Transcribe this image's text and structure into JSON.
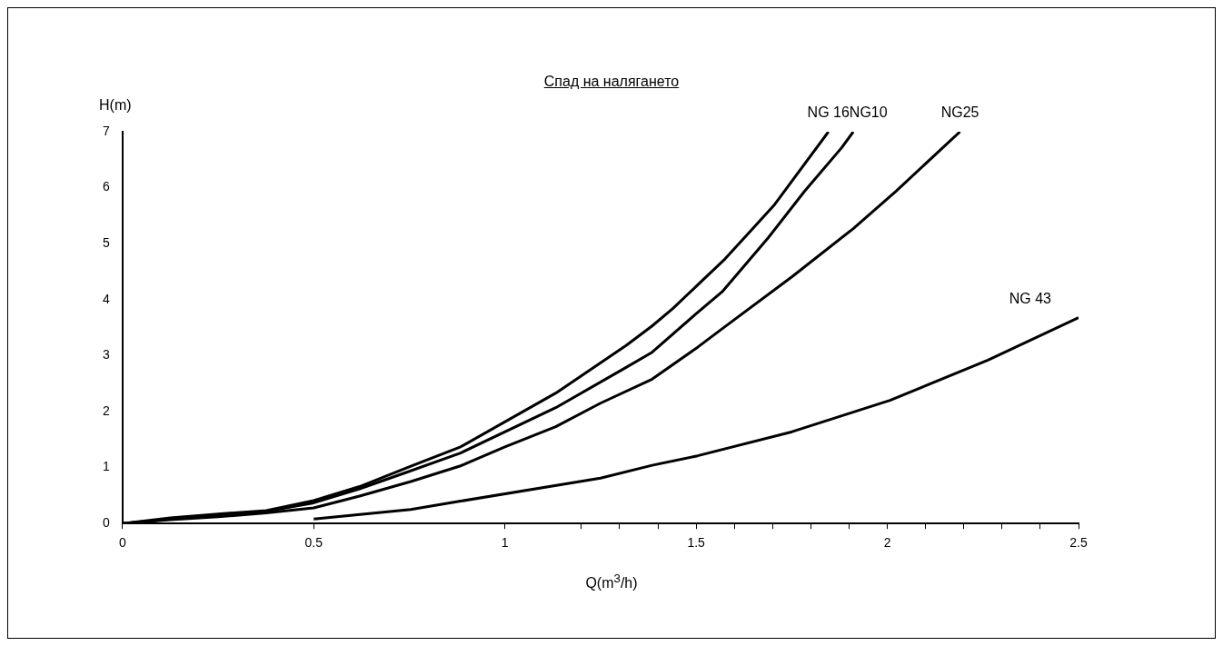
{
  "chart_data": {
    "type": "line",
    "title": "Спад на налягането",
    "xlabel": "Q(m$^{3}$/h)",
    "ylabel": "H(m)",
    "series": [
      {
        "name": "NG 16",
        "color": "#000000",
        "x": [
          0,
          0.125,
          0.25,
          0.376,
          0.5,
          0.62,
          0.745,
          0.884,
          1.133,
          1.317,
          1.385,
          1.439,
          1.576,
          1.703,
          1.846
        ],
        "values": [
          0,
          0.1,
          0.17,
          0.23,
          0.41,
          0.66,
          1.0,
          1.37,
          2.33,
          3.18,
          3.53,
          3.84,
          4.73,
          5.68,
          7.0
        ]
      },
      {
        "name": "NG10",
        "color": "#000000",
        "x": [
          0,
          0.125,
          0.25,
          0.376,
          0.5,
          0.62,
          0.745,
          0.884,
          1.133,
          1.317,
          1.385,
          1.497,
          1.568,
          1.688,
          1.784,
          1.88,
          1.911
        ],
        "values": [
          0,
          0.08,
          0.15,
          0.22,
          0.37,
          0.62,
          0.92,
          1.26,
          2.07,
          2.79,
          3.06,
          3.73,
          4.14,
          5.1,
          5.94,
          6.71,
          7.0
        ]
      },
      {
        "name": "NG25",
        "color": "#000000",
        "x": [
          0,
          0.125,
          0.25,
          0.376,
          0.5,
          0.62,
          0.754,
          0.884,
          1.0,
          1.133,
          1.25,
          1.385,
          1.504,
          1.568,
          1.751,
          1.911,
          2.023,
          2.19
        ],
        "values": [
          0,
          0.07,
          0.12,
          0.19,
          0.28,
          0.49,
          0.75,
          1.03,
          1.37,
          1.73,
          2.15,
          2.58,
          3.15,
          3.48,
          4.41,
          5.27,
          5.94,
          7.0
        ]
      },
      {
        "name": "NG 43",
        "color": "#000000",
        "x": [
          0.5,
          0.754,
          0.884,
          1.25,
          1.385,
          1.504,
          1.751,
          2.007,
          2.263,
          2.5
        ],
        "values": [
          0.08,
          0.25,
          0.4,
          0.81,
          1.04,
          1.21,
          1.64,
          2.2,
          2.92,
          3.68
        ]
      }
    ],
    "xlim": [
      0,
      2.5
    ],
    "xticks": [
      0,
      0.5,
      1,
      {
        "value": 1.2,
        "label": null
      },
      {
        "value": 1.3,
        "label": null
      },
      {
        "value": 1.4,
        "label": null
      },
      1.5,
      {
        "value": 1.6,
        "label": null
      },
      {
        "value": 1.7,
        "label": null
      },
      {
        "value": 1.8,
        "label": null
      },
      {
        "value": 1.9,
        "label": null
      },
      2,
      {
        "value": 2.1,
        "label": null
      },
      {
        "value": 2.2,
        "label": null
      },
      {
        "value": 2.3,
        "label": null
      },
      {
        "value": 2.4,
        "label": null
      },
      2.5
    ],
    "ylim": [
      0,
      7
    ],
    "yticks": [
      0,
      1,
      2,
      3,
      4,
      5,
      6,
      7
    ],
    "grid": false,
    "legend": false,
    "marker": "none",
    "line_style": "solid"
  }
}
